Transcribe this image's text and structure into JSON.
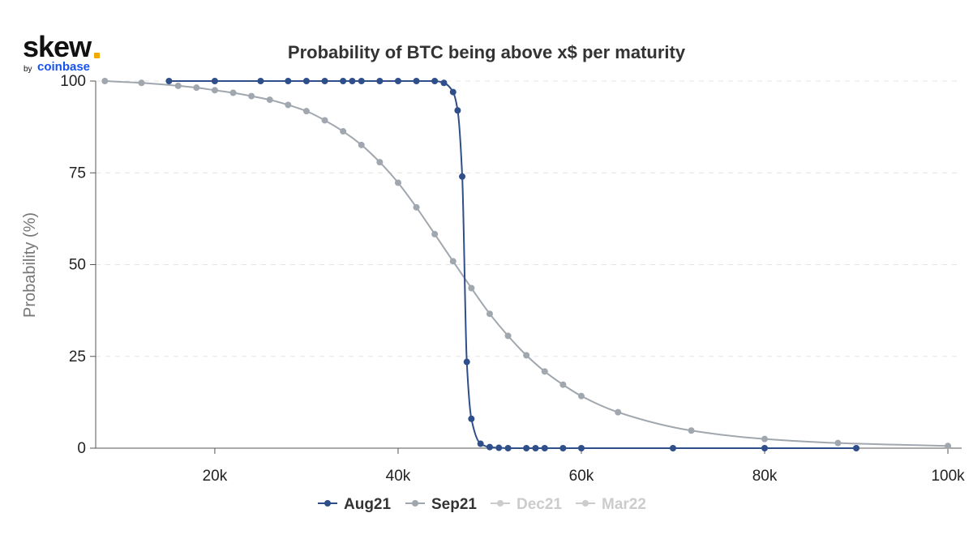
{
  "logo": {
    "word": "skew",
    "by": "by",
    "brand": "coinbase"
  },
  "chart_data": {
    "type": "line",
    "title": "Probability of BTC being above x$ per maturity",
    "xlabel": "",
    "ylabel": "Probability (%)",
    "xlim": [
      7000,
      101500
    ],
    "ylim": [
      0,
      100
    ],
    "x_ticks": [
      {
        "value": 20000,
        "label": "20k"
      },
      {
        "value": 40000,
        "label": "40k"
      },
      {
        "value": 60000,
        "label": "60k"
      },
      {
        "value": 80000,
        "label": "80k"
      },
      {
        "value": 100000,
        "label": "100k"
      }
    ],
    "y_ticks": [
      {
        "value": 0,
        "label": "0"
      },
      {
        "value": 25,
        "label": "25"
      },
      {
        "value": 50,
        "label": "50"
      },
      {
        "value": 75,
        "label": "75"
      },
      {
        "value": 100,
        "label": "100"
      }
    ],
    "grid": "horizontal dashed",
    "legend_position": "bottom-center",
    "series": [
      {
        "name": "Aug21",
        "color": "#2f4f8a",
        "visible": true,
        "points": [
          [
            15000,
            100
          ],
          [
            20000,
            100
          ],
          [
            25000,
            100
          ],
          [
            28000,
            100
          ],
          [
            30000,
            100
          ],
          [
            32000,
            100
          ],
          [
            34000,
            100
          ],
          [
            35000,
            100
          ],
          [
            36000,
            100
          ],
          [
            38000,
            100
          ],
          [
            40000,
            100
          ],
          [
            42000,
            100
          ],
          [
            44000,
            100
          ],
          [
            45000,
            99.5
          ],
          [
            46000,
            97
          ],
          [
            46500,
            92
          ],
          [
            47000,
            74
          ],
          [
            47500,
            23.5
          ],
          [
            48000,
            8
          ],
          [
            49000,
            1.2
          ],
          [
            50000,
            0.3
          ],
          [
            51000,
            0.1
          ],
          [
            52000,
            0
          ],
          [
            54000,
            0
          ],
          [
            55000,
            0
          ],
          [
            56000,
            0
          ],
          [
            58000,
            0
          ],
          [
            60000,
            0
          ],
          [
            70000,
            0
          ],
          [
            80000,
            0
          ],
          [
            90000,
            0
          ]
        ]
      },
      {
        "name": "Sep21",
        "color": "#a0a7ae",
        "visible": true,
        "points": [
          [
            8000,
            100
          ],
          [
            12000,
            99.5
          ],
          [
            16000,
            98.7
          ],
          [
            18000,
            98.2
          ],
          [
            20000,
            97.5
          ],
          [
            22000,
            96.8
          ],
          [
            24000,
            95.9
          ],
          [
            26000,
            94.9
          ],
          [
            28000,
            93.5
          ],
          [
            30000,
            91.8
          ],
          [
            32000,
            89.3
          ],
          [
            34000,
            86.3
          ],
          [
            36000,
            82.6
          ],
          [
            38000,
            77.9
          ],
          [
            40000,
            72.3
          ],
          [
            42000,
            65.6
          ],
          [
            44000,
            58.3
          ],
          [
            46000,
            50.9
          ],
          [
            48000,
            43.6
          ],
          [
            50000,
            36.6
          ],
          [
            52000,
            30.6
          ],
          [
            54000,
            25.3
          ],
          [
            56000,
            20.9
          ],
          [
            58000,
            17.3
          ],
          [
            60000,
            14.2
          ],
          [
            64000,
            9.8
          ],
          [
            72000,
            4.8
          ],
          [
            80000,
            2.5
          ],
          [
            88000,
            1.4
          ],
          [
            100000,
            0.6
          ]
        ]
      },
      {
        "name": "Dec21",
        "color": "#cccccc",
        "visible": false,
        "points": []
      },
      {
        "name": "Mar22",
        "color": "#cccccc",
        "visible": false,
        "points": []
      }
    ]
  }
}
